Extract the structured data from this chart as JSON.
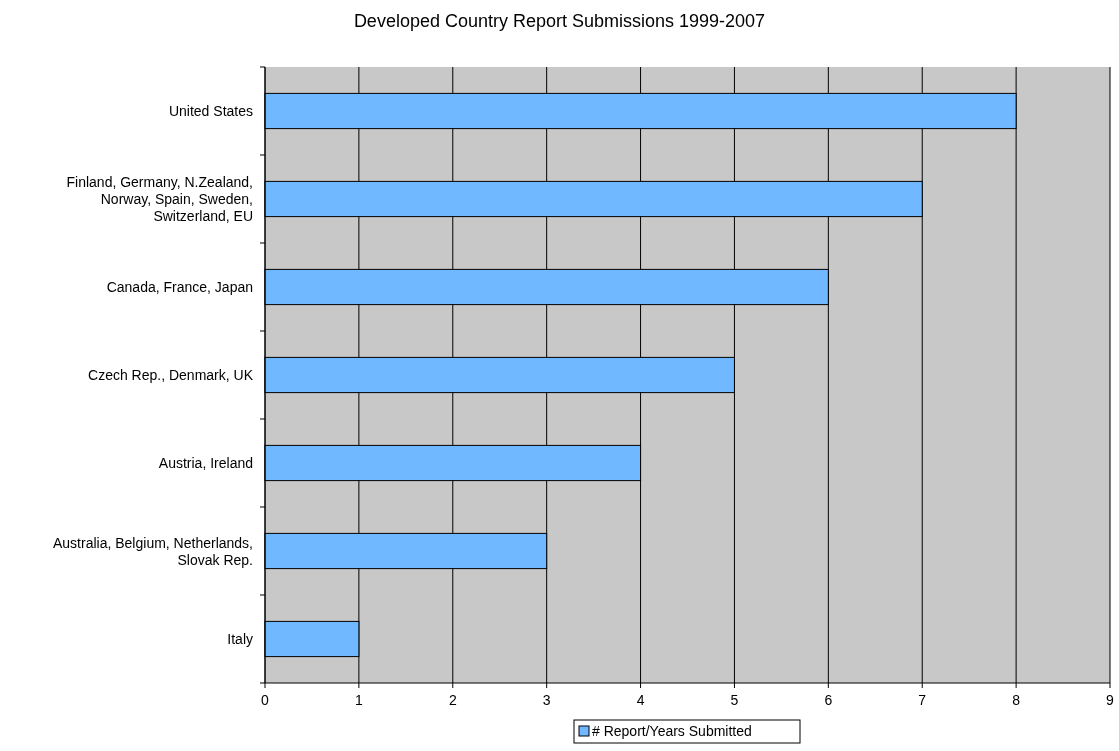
{
  "chart_data": {
    "type": "bar",
    "orientation": "horizontal",
    "title": "Developed Country Report Submissions 1999-2007",
    "categories": [
      "United States",
      "Finland, Germany, N.Zealand, Norway, Spain, Sweden, Switzerland, EU",
      "Canada, France, Japan",
      "Czech Rep., Denmark, UK",
      "Austria, Ireland",
      "Australia, Belgium, Netherlands, Slovak Rep.",
      "Italy"
    ],
    "series": [
      {
        "name": "# Report/Years Submitted",
        "color": "#70b8ff",
        "values": [
          8,
          7,
          6,
          5,
          4,
          3,
          1
        ]
      }
    ],
    "xlim": [
      0,
      9
    ],
    "xticks": [
      0,
      1,
      2,
      3,
      4,
      5,
      6,
      7,
      8,
      9
    ],
    "grid": "x",
    "legend": "bottom"
  }
}
